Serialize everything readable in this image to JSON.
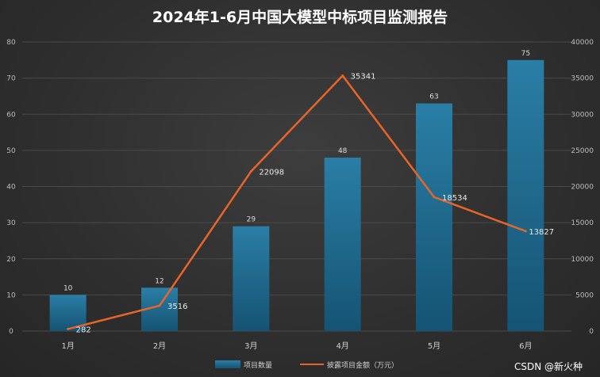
{
  "watermark": "CSDN @新火种",
  "colors": {
    "bar": "#1f6a8e",
    "line": "#e8652a",
    "grid": "#4a4a4a"
  },
  "chart_data": {
    "type": "bar",
    "title": "2024年1-6月中国大模型中标项目监测报告",
    "categories": [
      "1月",
      "2月",
      "3月",
      "4月",
      "5月",
      "6月"
    ],
    "series": [
      {
        "name": "项目数量",
        "type": "bar",
        "axis": "left",
        "values": [
          10,
          12,
          29,
          48,
          63,
          75
        ]
      },
      {
        "name": "披露项目金额（万元）",
        "type": "line",
        "axis": "right",
        "values": [
          282,
          3516,
          22098,
          35341,
          18534,
          13827
        ]
      }
    ],
    "y_left": {
      "min": 0,
      "max": 80,
      "ticks": [
        0,
        10,
        20,
        30,
        40,
        50,
        60,
        70,
        80
      ]
    },
    "y_right": {
      "min": 0,
      "max": 40000,
      "ticks": [
        0,
        5000,
        10000,
        15000,
        20000,
        25000,
        30000,
        35000,
        40000
      ]
    },
    "grid": true,
    "legend_position": "bottom"
  }
}
